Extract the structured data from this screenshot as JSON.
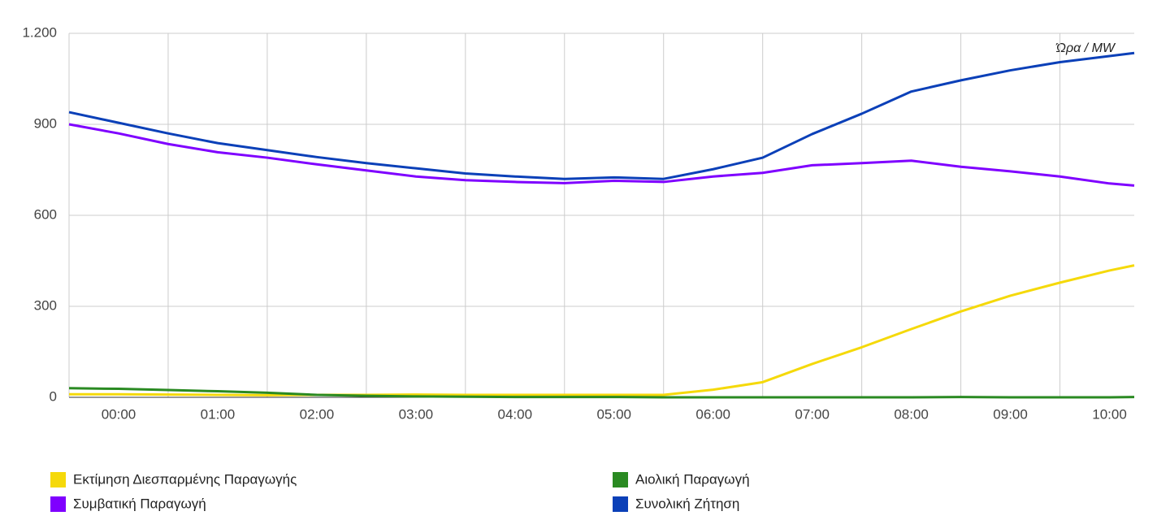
{
  "chart_data": {
    "type": "line",
    "annotation": "Ώρα / MW",
    "x": [
      -0.5,
      0,
      0.5,
      1,
      1.5,
      2,
      2.5,
      3,
      3.5,
      4,
      4.5,
      5,
      5.5,
      6,
      6.5,
      7,
      7.5,
      8,
      8.5,
      9,
      9.5,
      10,
      10.25
    ],
    "xlim": [
      -0.5,
      10.25
    ],
    "xticks": [
      {
        "value": 0,
        "label": "00:00"
      },
      {
        "value": 1,
        "label": "01:00"
      },
      {
        "value": 2,
        "label": "02:00"
      },
      {
        "value": 3,
        "label": "03:00"
      },
      {
        "value": 4,
        "label": "04:00"
      },
      {
        "value": 5,
        "label": "05:00"
      },
      {
        "value": 6,
        "label": "06:00"
      },
      {
        "value": 7,
        "label": "07:00"
      },
      {
        "value": 8,
        "label": "08:00"
      },
      {
        "value": 9,
        "label": "09:00"
      },
      {
        "value": 10,
        "label": "10:00"
      }
    ],
    "xgrid": [
      -0.5,
      0.5,
      1.5,
      2.5,
      3.5,
      4.5,
      5.5,
      6.5,
      7.5,
      8.5,
      9.5
    ],
    "ylim": [
      0,
      1200
    ],
    "yticks": [
      0,
      300,
      600,
      900,
      {
        "value": 1200,
        "label": "1.200"
      }
    ],
    "grid": true,
    "legend": "bottom",
    "series": [
      {
        "name": "Εκτίμηση Διεσπαρμένης Παραγωγής",
        "color": "#f5d90a",
        "values": [
          10,
          10,
          9,
          8,
          7,
          8,
          8,
          9,
          8,
          8,
          8,
          8,
          8,
          25,
          50,
          110,
          165,
          225,
          283,
          335,
          378,
          418,
          435
        ]
      },
      {
        "name": "Αιολική Παραγωγή",
        "color": "#2a8a22",
        "values": [
          30,
          28,
          24,
          20,
          15,
          8,
          5,
          3,
          2,
          1,
          1,
          1,
          0,
          0,
          0,
          0,
          0,
          0,
          1,
          0,
          0,
          0,
          1
        ]
      },
      {
        "name": "Συμβατική Παραγωγή",
        "color": "#7f00ff",
        "values": [
          900,
          870,
          835,
          808,
          790,
          768,
          748,
          728,
          716,
          710,
          706,
          714,
          710,
          728,
          740,
          765,
          772,
          780,
          760,
          745,
          728,
          705,
          698
        ]
      },
      {
        "name": "Συνολική Ζήτηση",
        "color": "#0b40b8",
        "values": [
          940,
          905,
          870,
          838,
          815,
          792,
          772,
          755,
          738,
          728,
          720,
          725,
          720,
          752,
          790,
          868,
          935,
          1008,
          1045,
          1078,
          1105,
          1125,
          1135
        ]
      }
    ]
  }
}
